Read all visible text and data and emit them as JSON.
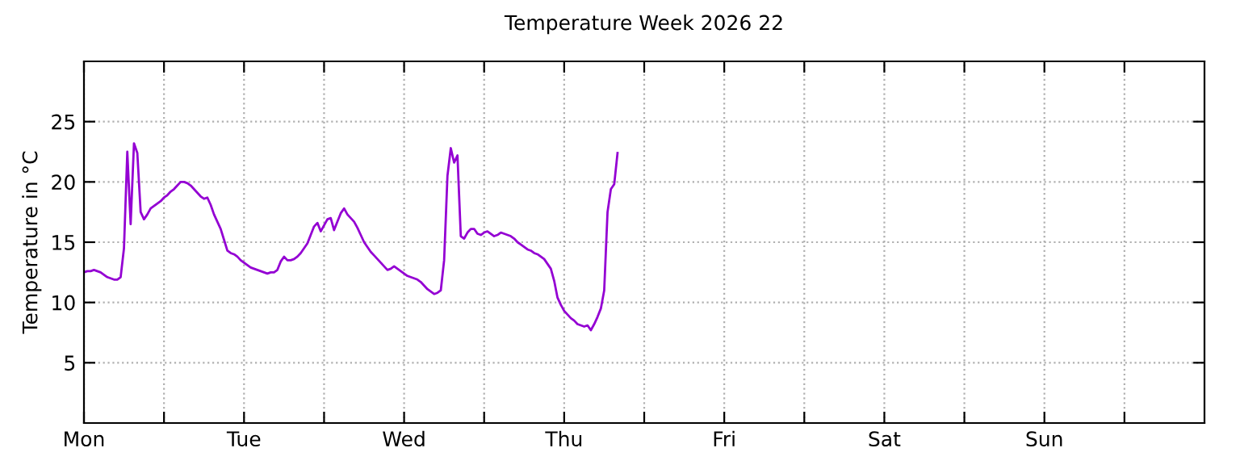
{
  "chart_data": {
    "type": "line",
    "title": "Temperature Week 2026 22",
    "ylabel": "Temperature in °C",
    "ylim": [
      0,
      30
    ],
    "yticks": [
      5,
      10,
      15,
      20,
      25
    ],
    "grid": true,
    "legend": false,
    "line_style": "dotted",
    "categories": [
      "Mon",
      null,
      null,
      null,
      null,
      null,
      null,
      null,
      null,
      null,
      null,
      null,
      null,
      null,
      null,
      null,
      null,
      null,
      null,
      null,
      null,
      null,
      null,
      null,
      null,
      null,
      null,
      null,
      null,
      null,
      null,
      null,
      null,
      null,
      null,
      null,
      null,
      null,
      null,
      null,
      null,
      null,
      null,
      null,
      null,
      null,
      null,
      null,
      "Tue",
      null,
      null,
      null,
      null,
      null,
      null,
      null,
      null,
      null,
      null,
      null,
      null,
      null,
      null,
      null,
      null,
      null,
      null,
      null,
      null,
      null,
      null,
      null,
      null,
      null,
      null,
      null,
      null,
      null,
      null,
      null,
      null,
      null,
      null,
      null,
      null,
      null,
      null,
      null,
      null,
      null,
      null,
      null,
      null,
      null,
      null,
      null,
      "Wed",
      null,
      null,
      null,
      null,
      null,
      null,
      null,
      null,
      null,
      null,
      null,
      null,
      null,
      null,
      null,
      null,
      null,
      null,
      null,
      null,
      null,
      null,
      null,
      null,
      null,
      null,
      null,
      null,
      null,
      null,
      null,
      null,
      null,
      null,
      null,
      null,
      null,
      null,
      null,
      null,
      null,
      null,
      null,
      null,
      null,
      null,
      null,
      "Thu",
      null,
      null,
      null,
      null,
      null,
      null,
      null,
      null,
      null,
      null,
      null,
      null,
      null,
      null,
      null,
      null,
      null,
      null,
      null,
      null,
      null,
      null,
      null,
      null,
      null,
      null,
      null,
      null,
      null,
      null,
      null,
      null,
      null,
      null,
      null,
      null,
      null,
      null,
      null,
      null,
      null,
      null,
      null,
      null,
      null,
      null,
      null,
      "Fri",
      null,
      null,
      null,
      null,
      null,
      null,
      null,
      null,
      null,
      null,
      null,
      null,
      null,
      null,
      null,
      null,
      null,
      null,
      null,
      null,
      null,
      null,
      null,
      null,
      null,
      null,
      null,
      null,
      null,
      null,
      null,
      null,
      null,
      null,
      null,
      null,
      null,
      null,
      null,
      null,
      null,
      null,
      null,
      null,
      null,
      null,
      null,
      "Sat",
      null,
      null,
      null,
      null,
      null,
      null,
      null,
      null,
      null,
      null,
      null,
      null,
      null,
      null,
      null,
      null,
      null,
      null,
      null,
      null,
      null,
      null,
      null,
      null,
      null,
      null,
      null,
      null,
      null,
      null,
      null,
      null,
      null,
      null,
      null,
      null,
      null,
      null,
      null,
      null,
      null,
      null,
      null,
      null,
      null,
      null,
      null,
      "Sun",
      null,
      null,
      null,
      null,
      null,
      null,
      null,
      null,
      null,
      null,
      null,
      null,
      null,
      null,
      null,
      null,
      null,
      null,
      null,
      null,
      null,
      null,
      null,
      null,
      null,
      null,
      null,
      null,
      null,
      null,
      null,
      null,
      null,
      null,
      null,
      null,
      null,
      null,
      null,
      null,
      null,
      null,
      null,
      null,
      null,
      null,
      null
    ],
    "series": [
      {
        "color": "#9400d3",
        "line_style": "solid",
        "values": [
          12.5,
          12.6,
          12.6,
          12.7,
          12.6,
          12.5,
          12.3,
          12.1,
          12.0,
          11.9,
          11.9,
          12.1,
          14.5,
          22.5,
          16.5,
          23.2,
          22.4,
          17.5,
          16.9,
          17.3,
          17.8,
          18.0,
          18.2,
          18.4,
          18.7,
          18.9,
          19.2,
          19.4,
          19.7,
          20.0,
          20.0,
          19.9,
          19.7,
          19.4,
          19.1,
          18.8,
          18.6,
          18.7,
          18.1,
          17.3,
          16.7,
          16.1,
          15.2,
          14.3,
          14.1,
          14.0,
          13.8,
          13.5,
          13.3,
          13.1,
          12.9,
          12.8,
          12.7,
          12.6,
          12.5,
          12.4,
          12.5,
          12.5,
          12.7,
          13.4,
          13.8,
          13.5,
          13.5,
          13.6,
          13.8,
          14.1,
          14.5,
          14.9,
          15.6,
          16.3,
          16.6,
          15.9,
          16.4,
          16.9,
          17.0,
          16.0,
          16.7,
          17.4,
          17.8,
          17.3,
          17.0,
          16.7,
          16.2,
          15.6,
          15.0,
          14.6,
          14.2,
          13.9,
          13.6,
          13.3,
          13.0,
          12.7,
          12.8,
          13.0,
          12.8,
          12.6,
          12.4,
          12.2,
          12.1,
          12.0,
          11.9,
          11.7,
          11.4,
          11.1,
          10.9,
          10.7,
          10.8,
          11.0,
          13.5,
          20.5,
          22.8,
          21.6,
          22.2,
          15.5,
          15.3,
          15.8,
          16.1,
          16.1,
          15.7,
          15.6,
          15.8,
          15.9,
          15.7,
          15.5,
          15.6,
          15.8,
          15.7,
          15.6,
          15.5,
          15.3,
          15.0,
          14.8,
          14.6,
          14.4,
          14.3,
          14.1,
          14.0,
          13.8,
          13.6,
          13.2,
          12.8,
          11.8,
          10.4,
          9.8,
          9.3,
          9.0,
          8.7,
          8.5,
          8.2,
          8.1,
          8.0,
          8.1,
          7.7,
          8.2,
          8.8,
          9.5,
          11.0,
          17.5,
          19.4,
          19.8,
          22.4,
          null,
          null,
          null,
          null,
          null,
          null,
          null,
          null,
          null,
          null,
          null,
          null,
          null,
          null,
          null,
          null,
          null,
          null,
          null,
          null,
          null,
          null,
          null,
          null,
          null,
          null,
          null,
          null,
          null,
          null,
          null,
          null,
          null,
          null,
          null,
          null,
          null,
          null,
          null,
          null,
          null,
          null,
          null,
          null,
          null,
          null,
          null,
          null,
          null,
          null,
          null,
          null,
          null,
          null,
          null,
          null,
          null,
          null,
          null,
          null,
          null,
          null,
          null,
          null,
          null,
          null,
          null,
          null,
          null,
          null,
          null,
          null,
          null,
          null,
          null,
          null,
          null,
          null,
          null,
          null,
          null,
          null,
          null,
          null,
          null,
          null,
          null,
          null,
          null,
          null,
          null,
          null,
          null,
          null,
          null,
          null,
          null,
          null,
          null,
          null,
          null,
          null,
          null,
          null,
          null,
          null,
          null,
          null,
          null,
          null,
          null,
          null,
          null,
          null,
          null,
          null,
          null,
          null,
          null,
          null,
          null,
          null,
          null,
          null,
          null,
          null,
          null,
          null,
          null,
          null,
          null,
          null,
          null,
          null,
          null,
          null,
          null,
          null,
          null,
          null,
          null,
          null,
          null,
          null,
          null,
          null,
          null,
          null,
          null,
          null,
          null,
          null,
          null,
          null,
          null,
          null,
          null,
          null,
          null,
          null,
          null,
          null,
          null,
          null,
          null,
          null,
          null,
          null,
          null,
          null,
          null,
          null,
          null,
          null,
          null
        ]
      }
    ]
  }
}
